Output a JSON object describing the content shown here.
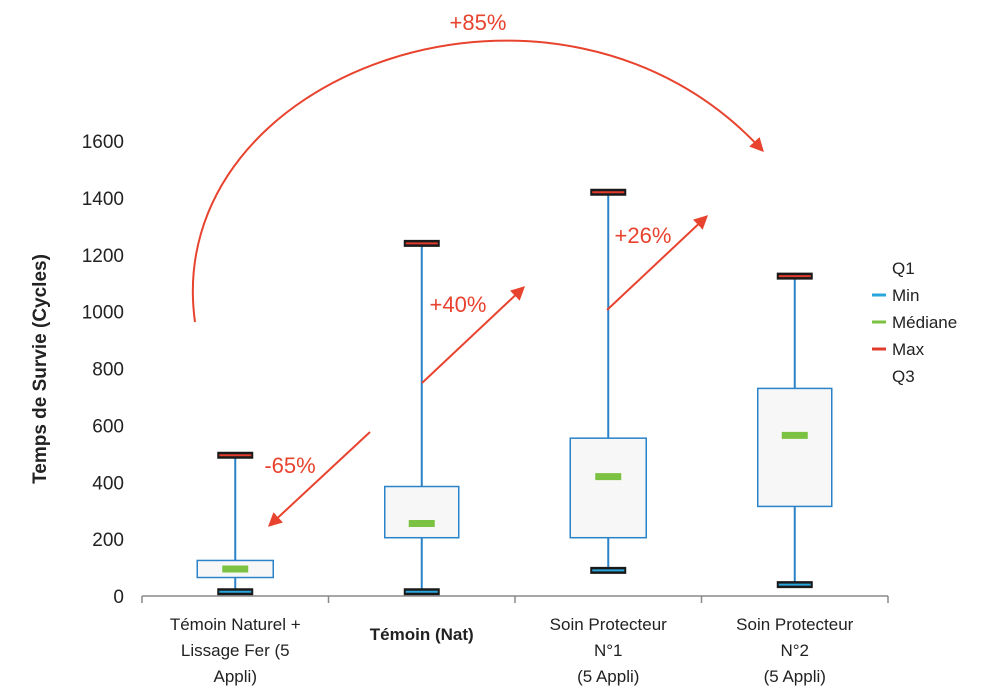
{
  "chart_data": {
    "type": "box",
    "title": "",
    "xlabel": "",
    "ylabel": "Temps de Survie (Cycles)",
    "ylim": [
      0,
      1600
    ],
    "yticks": [
      0,
      200,
      400,
      600,
      800,
      1000,
      1200,
      1400,
      1600
    ],
    "categories": [
      {
        "lines": [
          "Témoin Naturel +",
          "Lissage Fer (5",
          "Appli)"
        ],
        "highlight": false
      },
      {
        "lines": [
          "Témoin (Nat)"
        ],
        "highlight": true
      },
      {
        "lines": [
          "Soin Protecteur",
          "N°1",
          "(5 Appli)"
        ],
        "highlight": false
      },
      {
        "lines": [
          "Soin Protecteur",
          "N°2",
          "(5 Appli)"
        ],
        "highlight": false
      }
    ],
    "series": [
      {
        "name": "Min",
        "values": [
          15,
          15,
          90,
          40
        ]
      },
      {
        "name": "Q1",
        "values": [
          65,
          205,
          205,
          315
        ]
      },
      {
        "name": "Médiane",
        "values": [
          95,
          255,
          420,
          565
        ]
      },
      {
        "name": "Q3",
        "values": [
          125,
          385,
          555,
          730
        ]
      },
      {
        "name": "Max",
        "values": [
          495,
          1240,
          1420,
          1125
        ]
      }
    ],
    "legend": {
      "position": "right",
      "items": [
        {
          "label": "Q1",
          "color": ""
        },
        {
          "label": "Min",
          "color": "#2aa6de"
        },
        {
          "label": "Médiane",
          "color": "#7cc242"
        },
        {
          "label": "Max",
          "color": "#e23b2e"
        },
        {
          "label": "Q3",
          "color": ""
        }
      ]
    },
    "annotations": [
      {
        "text": "+85%",
        "from_category": 0,
        "to_category": 3
      },
      {
        "text": "-65%",
        "from_category": 1,
        "to_category": 0
      },
      {
        "text": "+40%",
        "from_category": 1,
        "to_category": 2
      },
      {
        "text": "+26%",
        "from_category": 2,
        "to_category": 3
      }
    ],
    "colors": {
      "box_stroke": "#2a82c8",
      "box_fill": "#f7f7f7",
      "whisker": "#2a82c8",
      "cap": "#1a1a1a",
      "median": "#7cc242",
      "arrow": "#e8432e",
      "highlight_label": "#c02590",
      "axis": "#888888"
    }
  }
}
